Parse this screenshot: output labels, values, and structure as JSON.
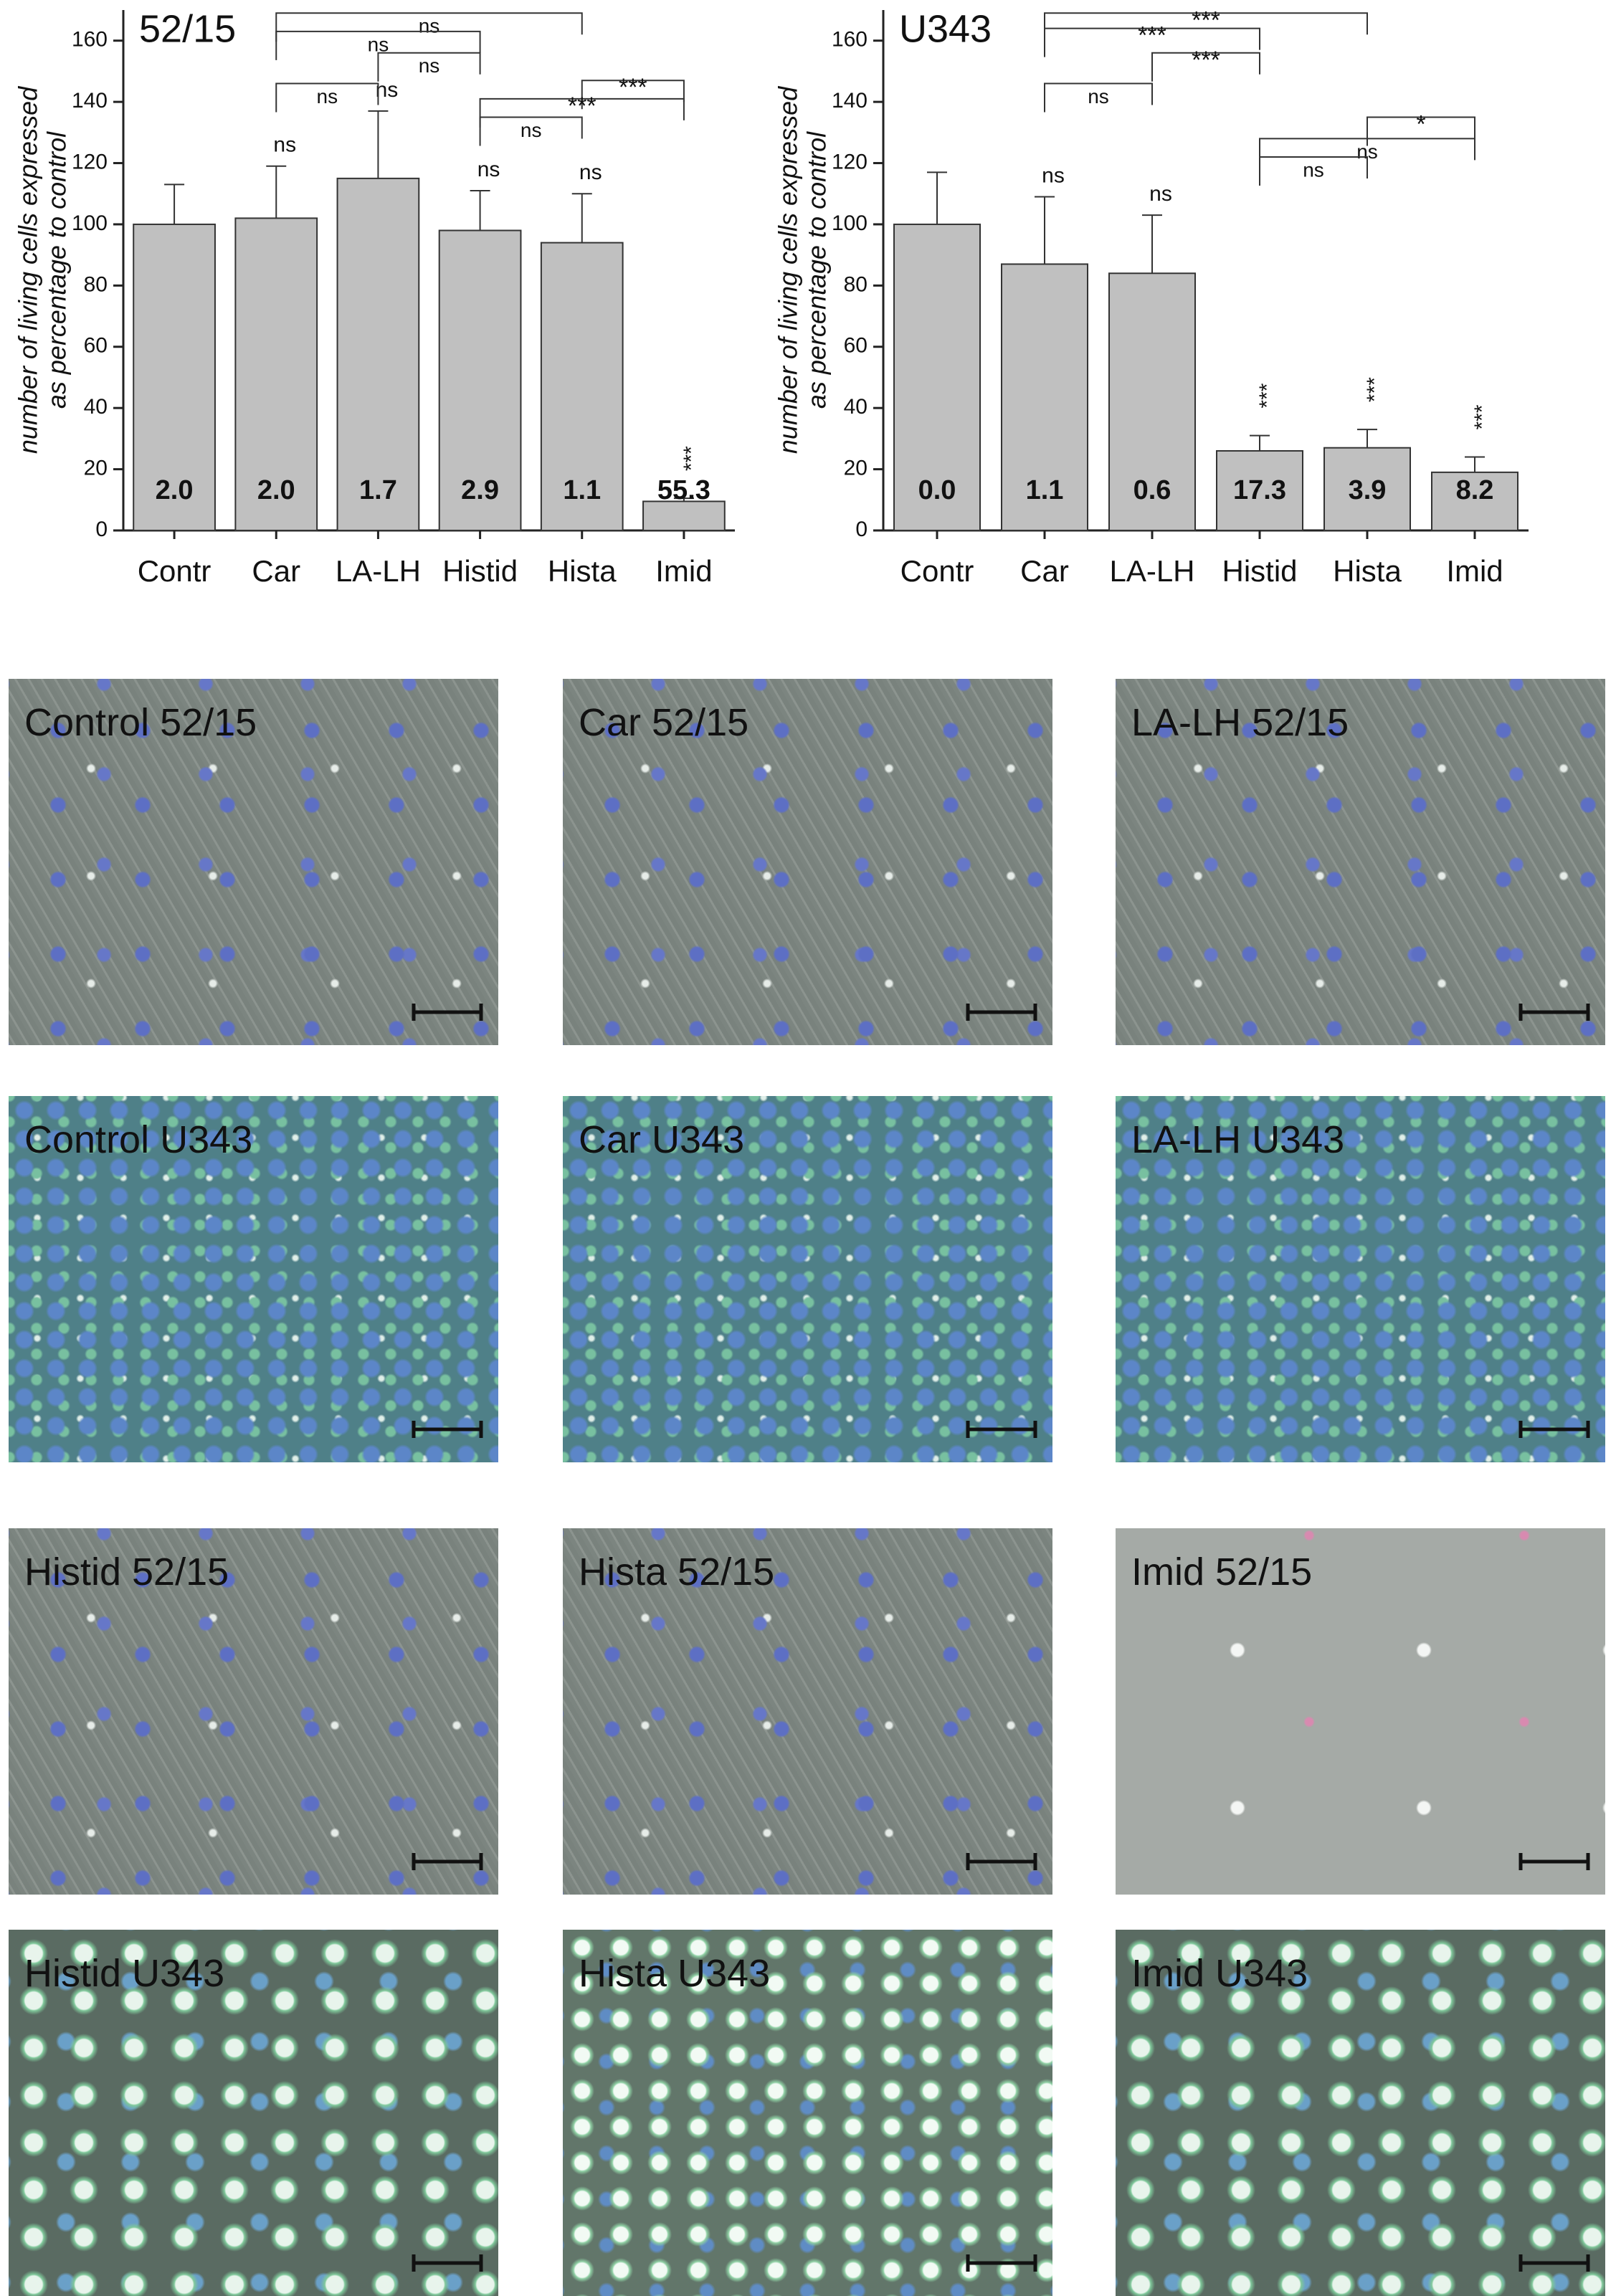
{
  "chart_data": [
    {
      "type": "bar",
      "title": "52/15",
      "ylabel": [
        "number of living cells expressed",
        "as percentage to control"
      ],
      "categories": [
        "Contr",
        "Car",
        "LA-LH",
        "Histid",
        "Hista",
        "Imid"
      ],
      "values": [
        100,
        102,
        115,
        98,
        94,
        9.5
      ],
      "errors": [
        13,
        17,
        22,
        13,
        16,
        1
      ],
      "bar_labels": [
        "2.0",
        "2.0",
        "1.7",
        "2.9",
        "1.1",
        "55.3"
      ],
      "significance": [
        null,
        "ns",
        "ns",
        "ns",
        "ns",
        "***"
      ],
      "brackets": [
        {
          "from": "Car",
          "to": "Hista",
          "y": 169,
          "label": "ns"
        },
        {
          "from": "Car",
          "to": "Histid",
          "y": 163,
          "label": "ns"
        },
        {
          "from": "LA-LH",
          "to": "Histid",
          "y": 156,
          "label": "ns"
        },
        {
          "from": "Car",
          "to": "LA-LH",
          "y": 146,
          "label": "ns"
        },
        {
          "from": "Hista",
          "to": "Imid",
          "y": 147,
          "label": "***"
        },
        {
          "from": "Histid",
          "to": "Imid",
          "y": 141,
          "label": "***"
        },
        {
          "from": "Histid",
          "to": "Hista",
          "y": 135,
          "label": "ns"
        }
      ],
      "color": "#c0c0c0",
      "ylim": [
        0,
        170
      ],
      "yticks": [
        0,
        20,
        40,
        60,
        80,
        100,
        120,
        140,
        160
      ]
    },
    {
      "type": "bar",
      "title": "U343",
      "ylabel": [
        "number of living cells expressed",
        "as percentage to control"
      ],
      "categories": [
        "Contr",
        "Car",
        "LA-LH",
        "Histid",
        "Hista",
        "Imid"
      ],
      "values": [
        100,
        87,
        84,
        26,
        27,
        19
      ],
      "errors": [
        17,
        22,
        19,
        5,
        6,
        5
      ],
      "bar_labels": [
        "0.0",
        "1.1",
        "0.6",
        "17.3",
        "3.9",
        "8.2"
      ],
      "significance": [
        null,
        "ns",
        "ns",
        "***",
        "***",
        "***"
      ],
      "brackets": [
        {
          "from": "Car",
          "to": "Hista",
          "y": 169,
          "label": "***"
        },
        {
          "from": "Car",
          "to": "Histid",
          "y": 164,
          "label": "***"
        },
        {
          "from": "LA-LH",
          "to": "Histid",
          "y": 156,
          "label": "***"
        },
        {
          "from": "Car",
          "to": "LA-LH",
          "y": 146,
          "label": "ns"
        },
        {
          "from": "Hista",
          "to": "Imid",
          "y": 135,
          "label": "*"
        },
        {
          "from": "Histid",
          "to": "Imid",
          "y": 128,
          "label": "ns"
        },
        {
          "from": "Histid",
          "to": "Hista",
          "y": 122,
          "label": "ns"
        }
      ],
      "color": "#c0c0c0",
      "ylim": [
        0,
        170
      ],
      "yticks": [
        0,
        20,
        40,
        60,
        80,
        100,
        120,
        140,
        160
      ]
    }
  ],
  "panels": [
    "Control 52/15",
    "Car 52/15",
    "LA-LH 52/15",
    "Control U343",
    "Car U343",
    "LA-LH U343",
    "Histid 52/15",
    "Hista 52/15",
    "Imid 52/15",
    "Histid U343",
    "Hista U343",
    "Imid U343"
  ]
}
